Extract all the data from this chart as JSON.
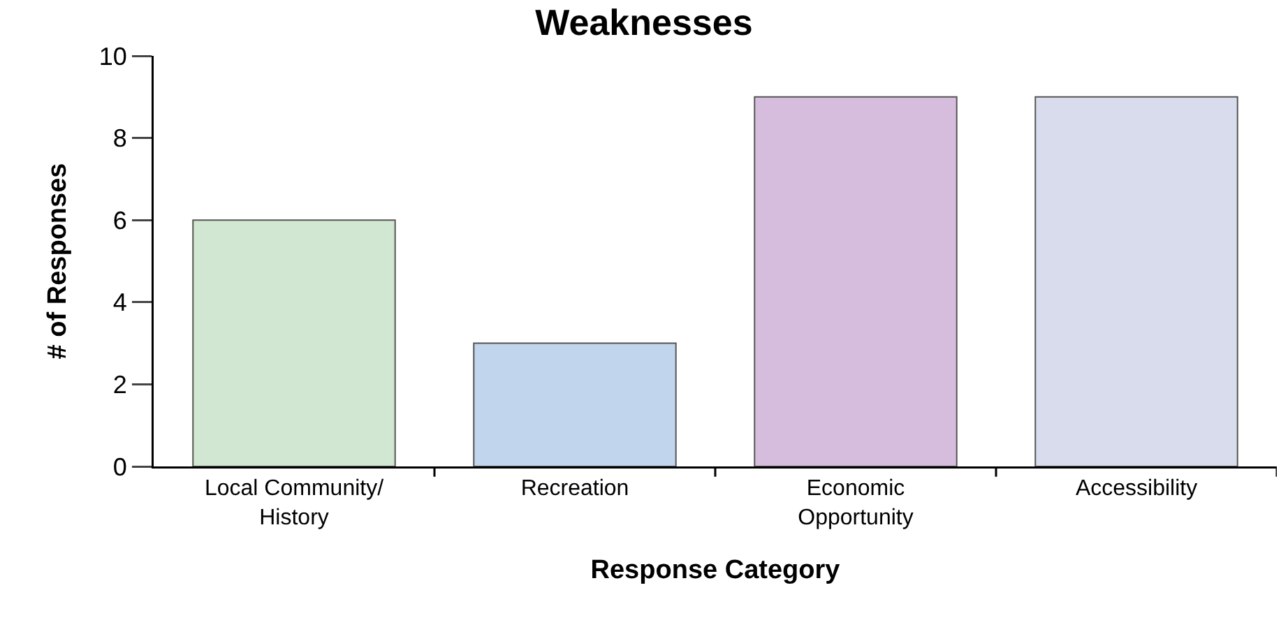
{
  "chart_data": {
    "type": "bar",
    "title": "Weaknesses",
    "xlabel": "Response Category",
    "ylabel": "# of Responses",
    "categories": [
      "Local Community/\nHistory",
      "Recreation",
      "Economic\nOpportunity",
      "Accessibility"
    ],
    "values": [
      6,
      3,
      9,
      9
    ],
    "colors": [
      "#d1e7d2",
      "#c1d5ed",
      "#d7bddd",
      "#d9dcec"
    ],
    "ylim": [
      0,
      10
    ],
    "yticks": [
      0,
      2,
      4,
      6,
      8,
      10
    ],
    "grid": false
  }
}
